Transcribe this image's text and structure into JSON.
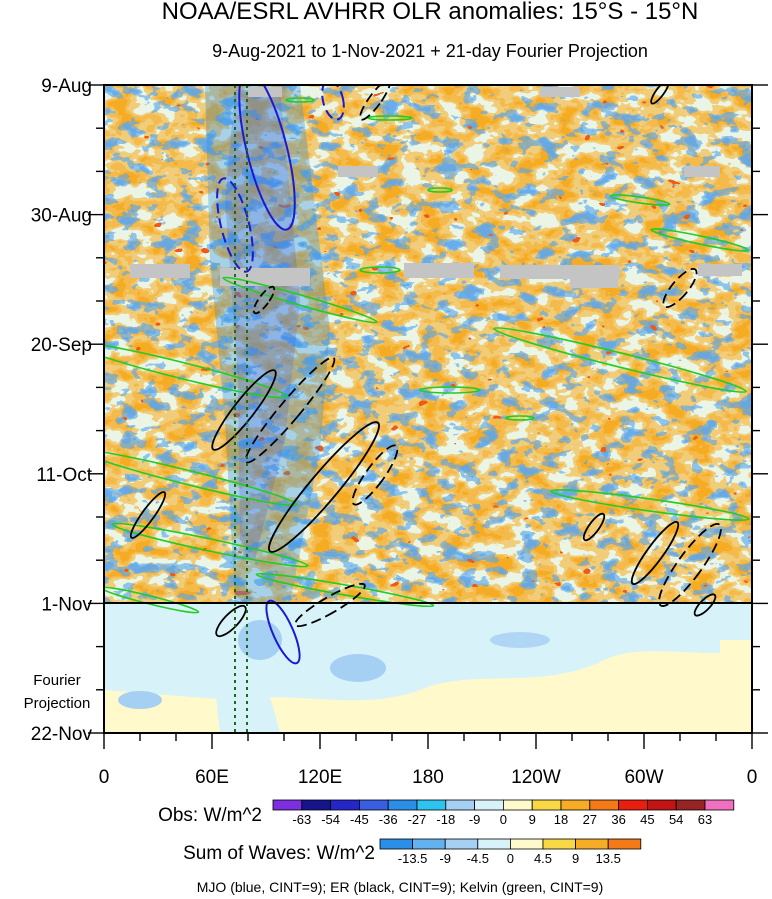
{
  "chart_data": {
    "type": "heatmap",
    "title": "NOAA/ESRL AVHRR OLR anomalies: 15°S - 15°N",
    "subtitle": "9-Aug-2021 to 1-Nov-2021 + 21-day Fourier Projection",
    "x_ticks": [
      "0",
      "60E",
      "120E",
      "180",
      "120W",
      "60W",
      "0"
    ],
    "y_ticks": [
      "9-Aug",
      "30-Aug",
      "20-Sep",
      "11-Oct",
      "1-Nov",
      "22-Nov"
    ],
    "projection_label_line1": "Fourier",
    "projection_label_line2": "Projection",
    "obs_legend": {
      "label": "Obs: W/m^2",
      "values": [
        "-63",
        "-54",
        "-45",
        "-36",
        "-27",
        "-18",
        "-9",
        "0",
        "9",
        "18",
        "27",
        "36",
        "45",
        "54",
        "63"
      ],
      "colors": [
        "#7b2fe0",
        "#16148a",
        "#2626c8",
        "#3a5ee0",
        "#2b8ee8",
        "#2ec4ee",
        "#a5d0f4",
        "#d8f2fa",
        "#fffacc",
        "#f8d844",
        "#f6ac24",
        "#f47a18",
        "#e81e10",
        "#c21414",
        "#962424",
        "#f070c0"
      ]
    },
    "waves_legend": {
      "label": "Sum of Waves: W/m^2",
      "values": [
        "-13.5",
        "-9",
        "-4.5",
        "0",
        "4.5",
        "9",
        "13.5"
      ],
      "colors": [
        "#2b8ee8",
        "#62b2f0",
        "#a5d0f4",
        "#d8f2fa",
        "#fffacc",
        "#f8d844",
        "#f6ac24",
        "#f47a18"
      ]
    },
    "footnote": "MJO (blue, CINT=9); ER (black, CINT=9); Kelvin (green, CINT=9)"
  }
}
